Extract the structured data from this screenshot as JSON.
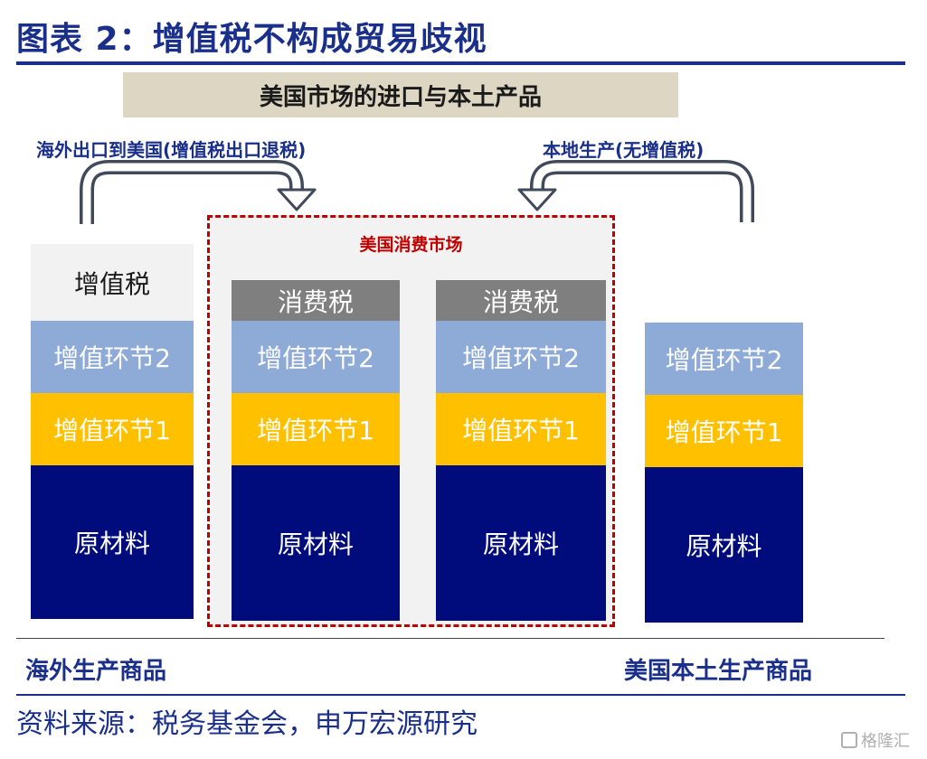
{
  "title": "图表 2：增值税不构成贸易歧视",
  "banner": "美国市场的进口与本土产品",
  "flows": {
    "left": "海外出口到美国(增值税出口退税)",
    "right": "本地生产(无增值税)"
  },
  "market_label": "美国消费市场",
  "columns": [
    {
      "segments": [
        "增值税",
        "增值环节2",
        "增值环节1",
        "原材料"
      ]
    },
    {
      "segments": [
        "消费税",
        "增值环节2",
        "增值环节1",
        "原材料"
      ]
    },
    {
      "segments": [
        "消费税",
        "增值环节2",
        "增值环节1",
        "原材料"
      ]
    },
    {
      "segments": [
        "增值环节2",
        "增值环节1",
        "原材料"
      ]
    }
  ],
  "footer": {
    "left": "海外生产商品",
    "right": "美国本土生产商品"
  },
  "source": "资料来源：税务基金会，申万宏源研究",
  "watermark": "格隆汇",
  "colors": {
    "title_blue": "#1a2f8a",
    "navy": "#000c7b",
    "gold": "#ffc000",
    "light_blue": "#8eaad6",
    "gray": "#7f7f7f",
    "red_dashed": "#c00000"
  }
}
